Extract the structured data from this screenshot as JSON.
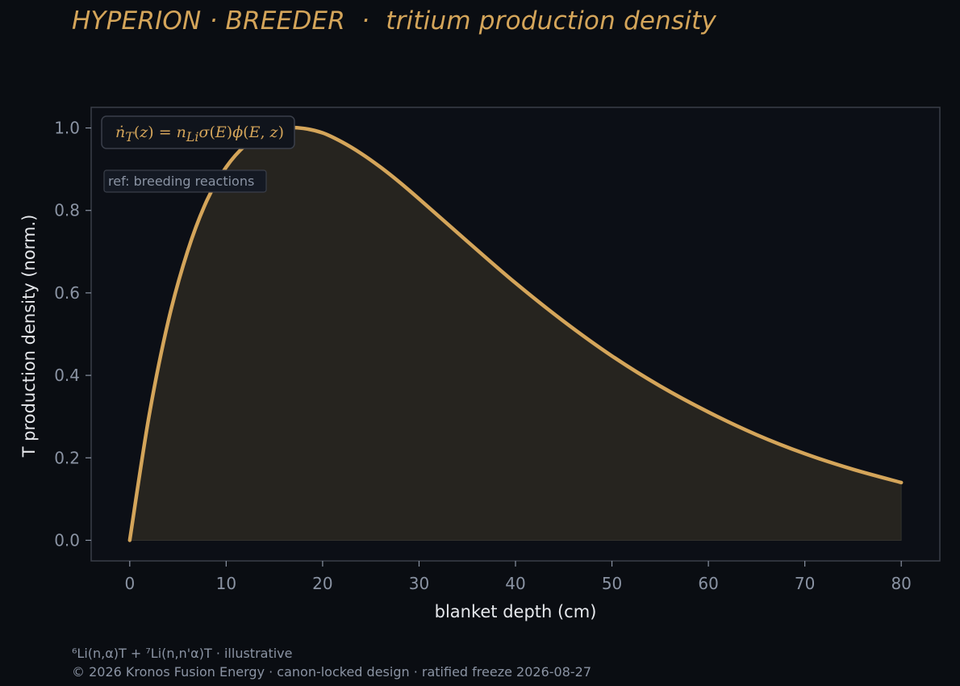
{
  "title": "HYPERION · BREEDER  ·  tritium production density",
  "colors": {
    "background": "#0a0d12",
    "plot_background": "#0c0f16",
    "accent": "#d4a55a",
    "fill": "#26241f",
    "axis_text": "#8a93a3",
    "label_text": "#e6e8ec",
    "frame": "#3a3f48"
  },
  "chart_data": {
    "type": "area",
    "xlabel": "blanket depth (cm)",
    "ylabel": "T production density (norm.)",
    "xlim": [
      -4,
      84
    ],
    "ylim": [
      -0.05,
      1.05
    ],
    "xticks": [
      0,
      10,
      20,
      30,
      40,
      50,
      60,
      70,
      80
    ],
    "yticks": [
      0.0,
      0.2,
      0.4,
      0.6,
      0.8,
      1.0
    ],
    "ytick_labels": [
      "0.0",
      "0.2",
      "0.4",
      "0.6",
      "0.8",
      "1.0"
    ],
    "grid": false,
    "series": [
      {
        "x": [
          0,
          2,
          4,
          6,
          8,
          10,
          12,
          14,
          16,
          18,
          20,
          22,
          24,
          26,
          28,
          30,
          35,
          40,
          45,
          50,
          55,
          60,
          65,
          70,
          75,
          80
        ],
        "y": [
          0.0,
          0.301,
          0.532,
          0.701,
          0.824,
          0.905,
          0.958,
          0.988,
          1.0,
          0.999,
          0.988,
          0.966,
          0.938,
          0.905,
          0.868,
          0.828,
          0.725,
          0.624,
          0.531,
          0.447,
          0.374,
          0.311,
          0.256,
          0.21,
          0.172,
          0.14
        ]
      }
    ],
    "annotations": {
      "formula_html": "<i>ṅ</i><sub><i>T</i></sub>(<i>z</i>) = <i>n</i><sub><i>Li</i></sub><i>σ</i>(<i>E</i>)<i>ϕ</i>(<i>E</i>, <i>z</i>)",
      "ref": "ref: breeding reactions"
    }
  },
  "footer": {
    "line1": "⁶Li(n,α)T + ⁷Li(n,n'α)T · illustrative",
    "line2": "© 2026 Kronos Fusion Energy · canon-locked design · ratified freeze 2026-08-27"
  }
}
